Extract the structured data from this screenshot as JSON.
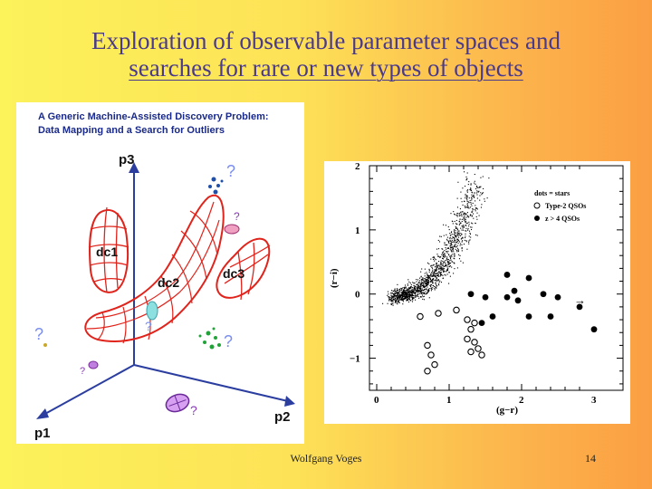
{
  "slide": {
    "title_line1": "Exploration of observable parameter spaces and",
    "title_line2": "searches for rare or new types of objects",
    "footer": "Wolfgang Voges",
    "page_number": "14"
  },
  "left_figure": {
    "heading_line1": "A Generic Machine-Assisted Discovery Problem:",
    "heading_line2": "Data Mapping and a Search for Outliers",
    "axis_labels": {
      "p1": "p1",
      "p2": "p2",
      "p3": "p3"
    },
    "clusters": {
      "dc1": "dc1",
      "dc2": "dc2",
      "dc3": "dc3"
    },
    "question_mark": "?",
    "colors": {
      "axis": "#2b3ea0",
      "cluster": "#e0231b",
      "outlier_blue": "#1f4fa6",
      "outlier_green": "#22a33a",
      "outlier_purple": "#8a3ab8",
      "question": "#7b8ef0"
    }
  },
  "chart_data": {
    "type": "scatter",
    "xlabel": "(g−r)",
    "ylabel": "(r−i)",
    "xlim": [
      -0.1,
      3.4
    ],
    "ylim": [
      -1.5,
      2.0
    ],
    "x_ticks": [
      "0",
      "1",
      "2",
      "3"
    ],
    "y_ticks": [
      "2",
      "1",
      "0",
      "−1"
    ],
    "legend_position": "top-right",
    "legend": [
      "dots = stars",
      "Type-2 QSOs",
      "z > 4 QSOs"
    ],
    "series": [
      {
        "name": "Type-2 QSOs",
        "marker": "open-circle",
        "points": [
          [
            0.6,
            -0.35
          ],
          [
            0.85,
            -0.3
          ],
          [
            1.1,
            -0.25
          ],
          [
            1.25,
            -0.4
          ],
          [
            1.35,
            -0.45
          ],
          [
            1.3,
            -0.55
          ],
          [
            1.25,
            -0.7
          ],
          [
            1.35,
            -0.75
          ],
          [
            1.4,
            -0.85
          ],
          [
            1.45,
            -0.95
          ],
          [
            1.3,
            -0.9
          ],
          [
            0.7,
            -0.8
          ],
          [
            0.75,
            -0.95
          ],
          [
            0.8,
            -1.1
          ],
          [
            0.7,
            -1.2
          ]
        ]
      },
      {
        "name": "z > 4 QSOs",
        "marker": "filled-circle",
        "points": [
          [
            1.3,
            0.0
          ],
          [
            1.5,
            -0.05
          ],
          [
            1.8,
            0.3
          ],
          [
            1.9,
            0.05
          ],
          [
            1.8,
            -0.05
          ],
          [
            1.95,
            -0.1
          ],
          [
            2.1,
            0.25
          ],
          [
            2.3,
            0.0
          ],
          [
            2.5,
            -0.05
          ],
          [
            2.4,
            -0.35
          ],
          [
            2.1,
            -0.35
          ],
          [
            1.6,
            -0.35
          ],
          [
            1.45,
            -0.45
          ],
          [
            3.0,
            -0.55
          ],
          [
            2.8,
            -0.2
          ]
        ]
      },
      {
        "name": "stars",
        "marker": "dot",
        "region": "locus from (0.3, -0.05) curving to (1.3, 1.6)"
      }
    ],
    "annotation": "→"
  },
  "icons": [
    "question-icon"
  ]
}
